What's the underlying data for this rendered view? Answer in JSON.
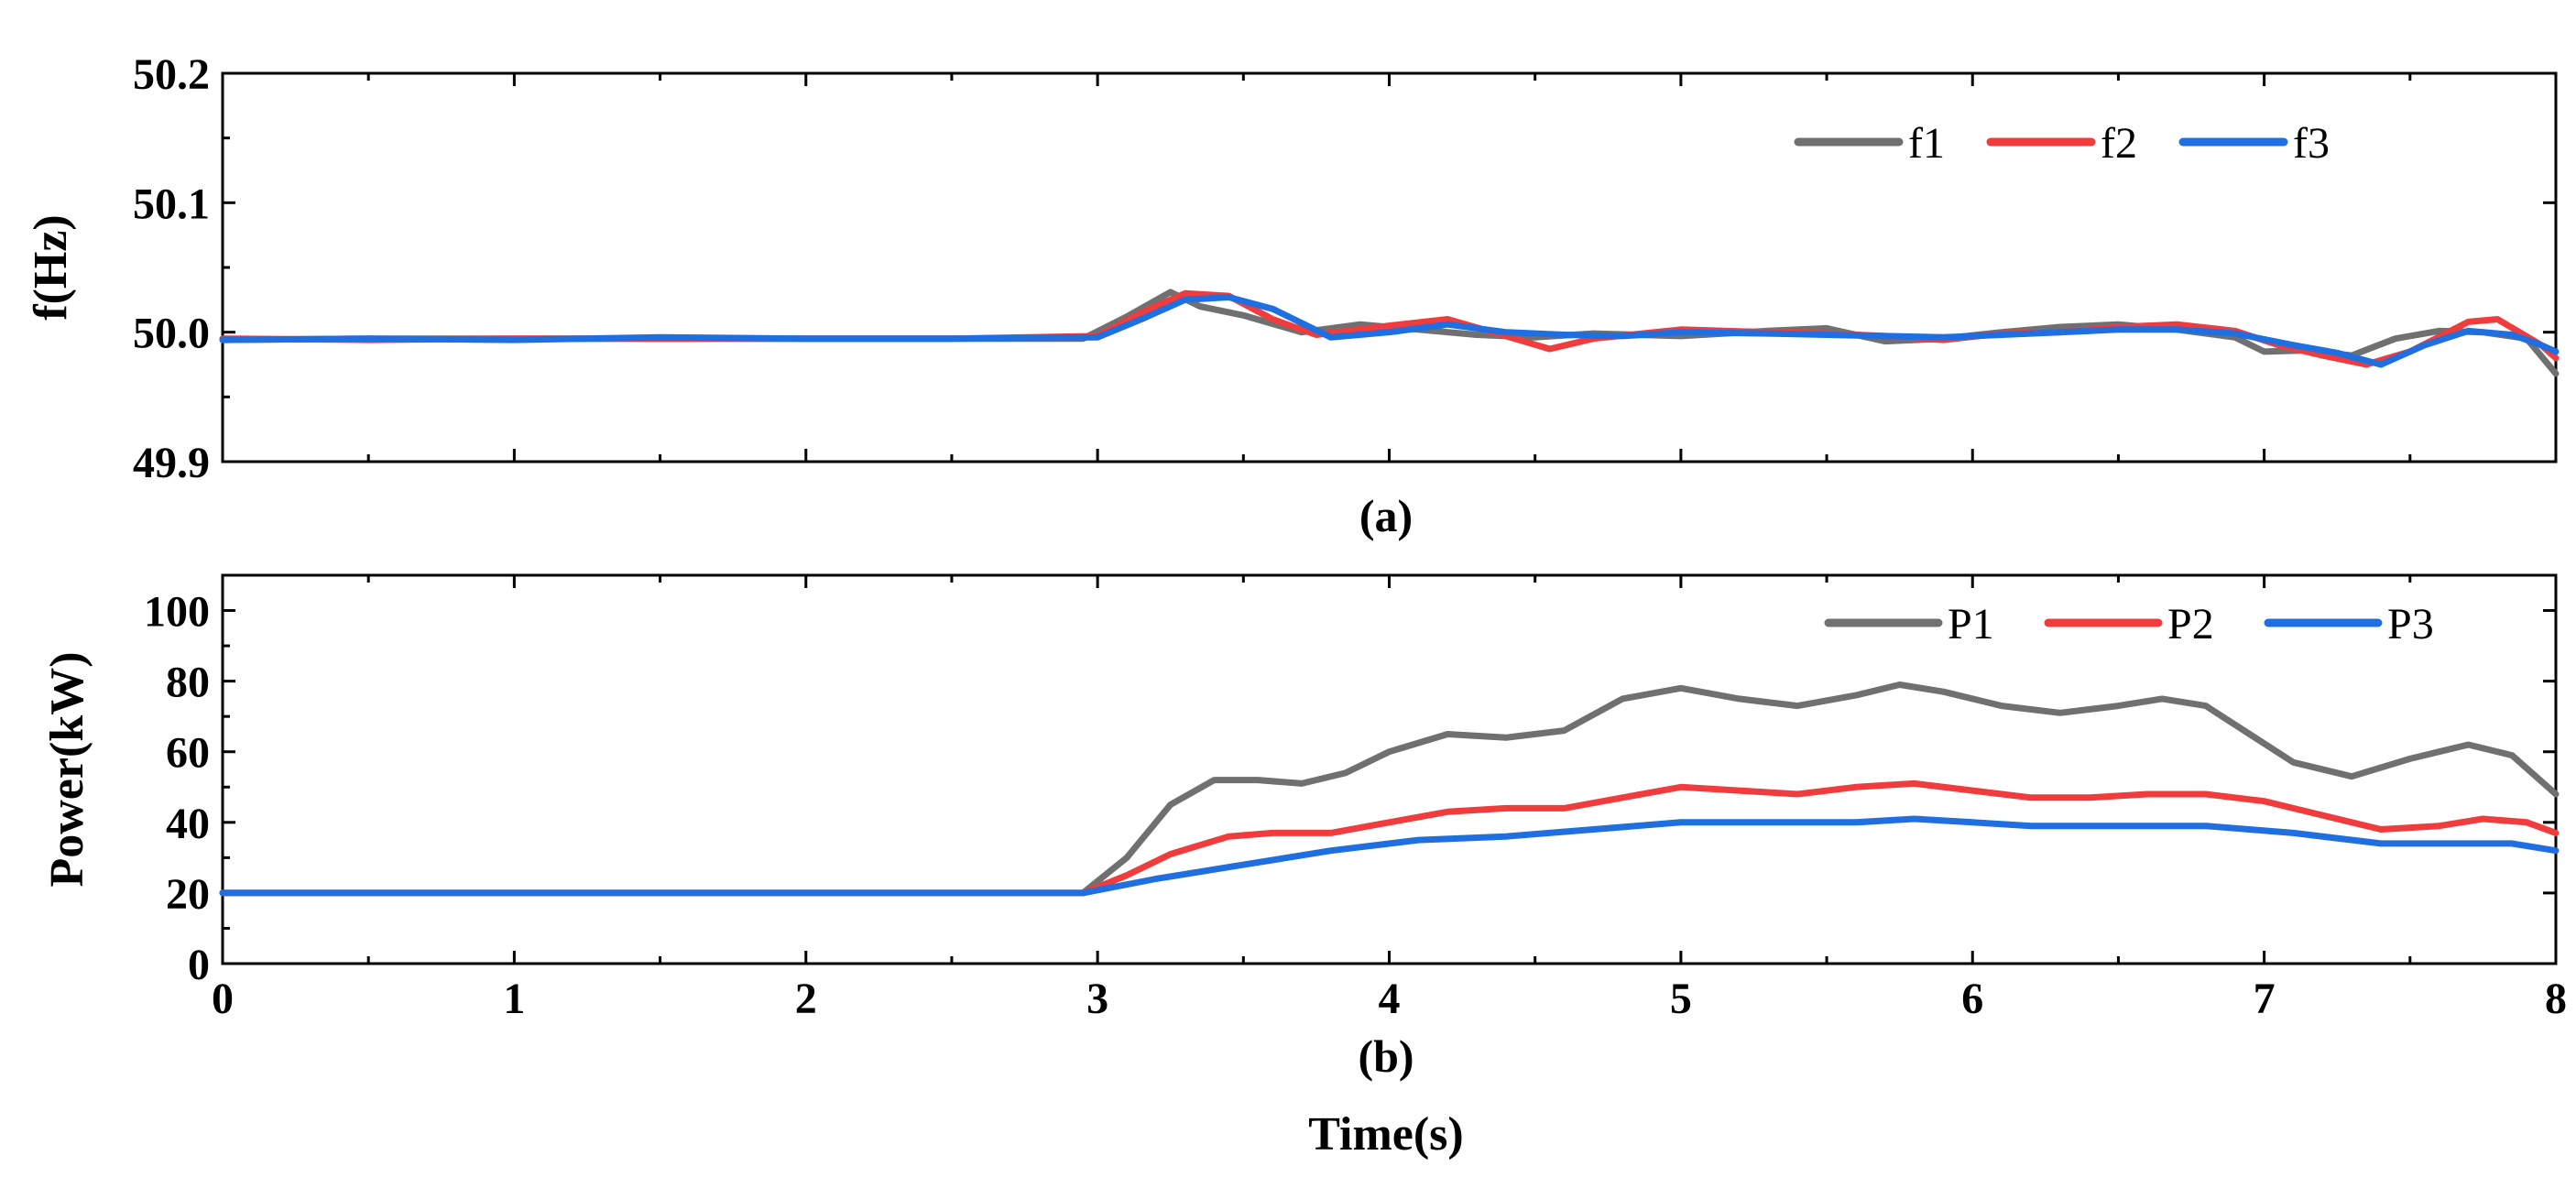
{
  "chart_data": [
    {
      "type": "line",
      "panel_label": "(a)",
      "ylabel": "f(Hz)",
      "xlabel": "",
      "xlim": [
        0,
        8
      ],
      "ylim": [
        49.9,
        50.2
      ],
      "yticks": [
        "50.2",
        "50.1",
        "50.0",
        "49.9"
      ],
      "ytick_values": [
        50.2,
        50.1,
        50.0,
        49.9
      ],
      "legend_position": "top-right",
      "series": [
        {
          "name": "f1",
          "color": "#707070",
          "x": [
            0,
            0.5,
            1,
            1.5,
            2,
            2.5,
            2.95,
            3.1,
            3.25,
            3.35,
            3.5,
            3.7,
            3.9,
            4.1,
            4.3,
            4.5,
            4.7,
            5.0,
            5.3,
            5.5,
            5.7,
            5.9,
            6.1,
            6.3,
            6.5,
            6.7,
            6.9,
            7.0,
            7.15,
            7.3,
            7.45,
            7.6,
            7.75,
            7.9,
            8.0
          ],
          "values": [
            49.994,
            49.995,
            49.995,
            49.995,
            49.995,
            49.995,
            49.995,
            50.012,
            50.031,
            50.02,
            50.013,
            50.0,
            50.006,
            50.002,
            49.998,
            49.996,
            49.999,
            49.997,
            50.001,
            50.003,
            49.993,
            49.995,
            50.0,
            50.004,
            50.006,
            50.002,
            49.996,
            49.985,
            49.986,
            49.982,
            49.995,
            50.001,
            50.0,
            49.995,
            49.968
          ]
        },
        {
          "name": "f2",
          "color": "#f03c3c",
          "x": [
            0,
            0.5,
            1,
            1.5,
            2,
            2.5,
            3.0,
            3.15,
            3.3,
            3.45,
            3.6,
            3.75,
            4.0,
            4.2,
            4.4,
            4.55,
            4.7,
            5.0,
            5.3,
            5.5,
            5.7,
            5.9,
            6.1,
            6.3,
            6.5,
            6.7,
            6.9,
            7.05,
            7.2,
            7.35,
            7.5,
            7.7,
            7.8,
            7.95,
            8.0
          ],
          "values": [
            49.995,
            49.994,
            49.995,
            49.995,
            49.995,
            49.995,
            49.997,
            50.015,
            50.03,
            50.028,
            50.01,
            49.998,
            50.005,
            50.01,
            49.997,
            49.987,
            49.995,
            50.002,
            50.0,
            49.999,
            49.997,
            49.994,
            49.999,
            50.0,
            50.004,
            50.006,
            50.001,
            49.99,
            49.982,
            49.975,
            49.985,
            50.008,
            50.01,
            49.99,
            49.98
          ]
        },
        {
          "name": "f3",
          "color": "#1f6fe0",
          "x": [
            0,
            0.5,
            1,
            1.5,
            2,
            2.5,
            3.0,
            3.15,
            3.3,
            3.45,
            3.6,
            3.8,
            4.0,
            4.2,
            4.4,
            4.6,
            4.8,
            5.0,
            5.3,
            5.5,
            5.7,
            5.9,
            6.1,
            6.3,
            6.5,
            6.7,
            6.9,
            7.1,
            7.25,
            7.4,
            7.55,
            7.7,
            7.85,
            7.95,
            8.0
          ],
          "values": [
            49.994,
            49.995,
            49.994,
            49.996,
            49.995,
            49.995,
            49.996,
            50.01,
            50.025,
            50.027,
            50.018,
            49.996,
            50.0,
            50.006,
            50.0,
            49.998,
            49.997,
            50.0,
            49.999,
            49.998,
            49.997,
            49.996,
            49.998,
            50.0,
            50.002,
            50.002,
            49.999,
            49.99,
            49.984,
            49.975,
            49.99,
            50.001,
            49.998,
            49.99,
            49.985
          ]
        }
      ]
    },
    {
      "type": "line",
      "panel_label": "(b)",
      "ylabel": "Power(kW)",
      "xlabel": "Time(s)",
      "xlim": [
        0,
        8
      ],
      "ylim": [
        0,
        110
      ],
      "yticks": [
        "100",
        "80",
        "60",
        "40",
        "20",
        "0"
      ],
      "ytick_values": [
        100,
        80,
        60,
        40,
        20,
        0
      ],
      "xticks": [
        "0",
        "1",
        "2",
        "3",
        "4",
        "5",
        "6",
        "7",
        "8"
      ],
      "xtick_values": [
        0,
        1,
        2,
        3,
        4,
        5,
        6,
        7,
        8
      ],
      "legend_position": "top-right",
      "series": [
        {
          "name": "P1",
          "color": "#707070",
          "x": [
            0,
            1,
            2,
            2.95,
            3.1,
            3.25,
            3.4,
            3.55,
            3.7,
            3.85,
            4.0,
            4.2,
            4.4,
            4.6,
            4.8,
            5.0,
            5.2,
            5.4,
            5.6,
            5.75,
            5.9,
            6.1,
            6.3,
            6.5,
            6.65,
            6.8,
            6.95,
            7.1,
            7.3,
            7.5,
            7.7,
            7.85,
            8.0
          ],
          "values": [
            20,
            20,
            20,
            20,
            30,
            45,
            52,
            52,
            51,
            54,
            60,
            65,
            64,
            66,
            75,
            78,
            75,
            73,
            76,
            79,
            77,
            73,
            71,
            73,
            75,
            73,
            65,
            57,
            53,
            58,
            62,
            59,
            48
          ]
        },
        {
          "name": "P2",
          "color": "#f03c3c",
          "x": [
            0,
            1,
            2,
            2.95,
            3.1,
            3.25,
            3.45,
            3.6,
            3.8,
            4.0,
            4.2,
            4.4,
            4.6,
            4.8,
            5.0,
            5.2,
            5.4,
            5.6,
            5.8,
            6.0,
            6.2,
            6.4,
            6.6,
            6.8,
            7.0,
            7.2,
            7.4,
            7.6,
            7.75,
            7.9,
            8.0
          ],
          "values": [
            20,
            20,
            20,
            20,
            25,
            31,
            36,
            37,
            37,
            40,
            43,
            44,
            44,
            47,
            50,
            49,
            48,
            50,
            51,
            49,
            47,
            47,
            48,
            48,
            46,
            42,
            38,
            39,
            41,
            40,
            37
          ]
        },
        {
          "name": "P3",
          "color": "#1f6fe0",
          "x": [
            0,
            1,
            2,
            2.95,
            3.2,
            3.5,
            3.8,
            4.1,
            4.4,
            4.7,
            5.0,
            5.3,
            5.6,
            5.8,
            6.0,
            6.2,
            6.5,
            6.8,
            7.1,
            7.4,
            7.7,
            7.85,
            8.0
          ],
          "values": [
            20,
            20,
            20,
            20,
            24,
            28,
            32,
            35,
            36,
            38,
            40,
            40,
            40,
            41,
            40,
            39,
            39,
            39,
            37,
            34,
            34,
            34,
            32
          ]
        }
      ]
    }
  ]
}
